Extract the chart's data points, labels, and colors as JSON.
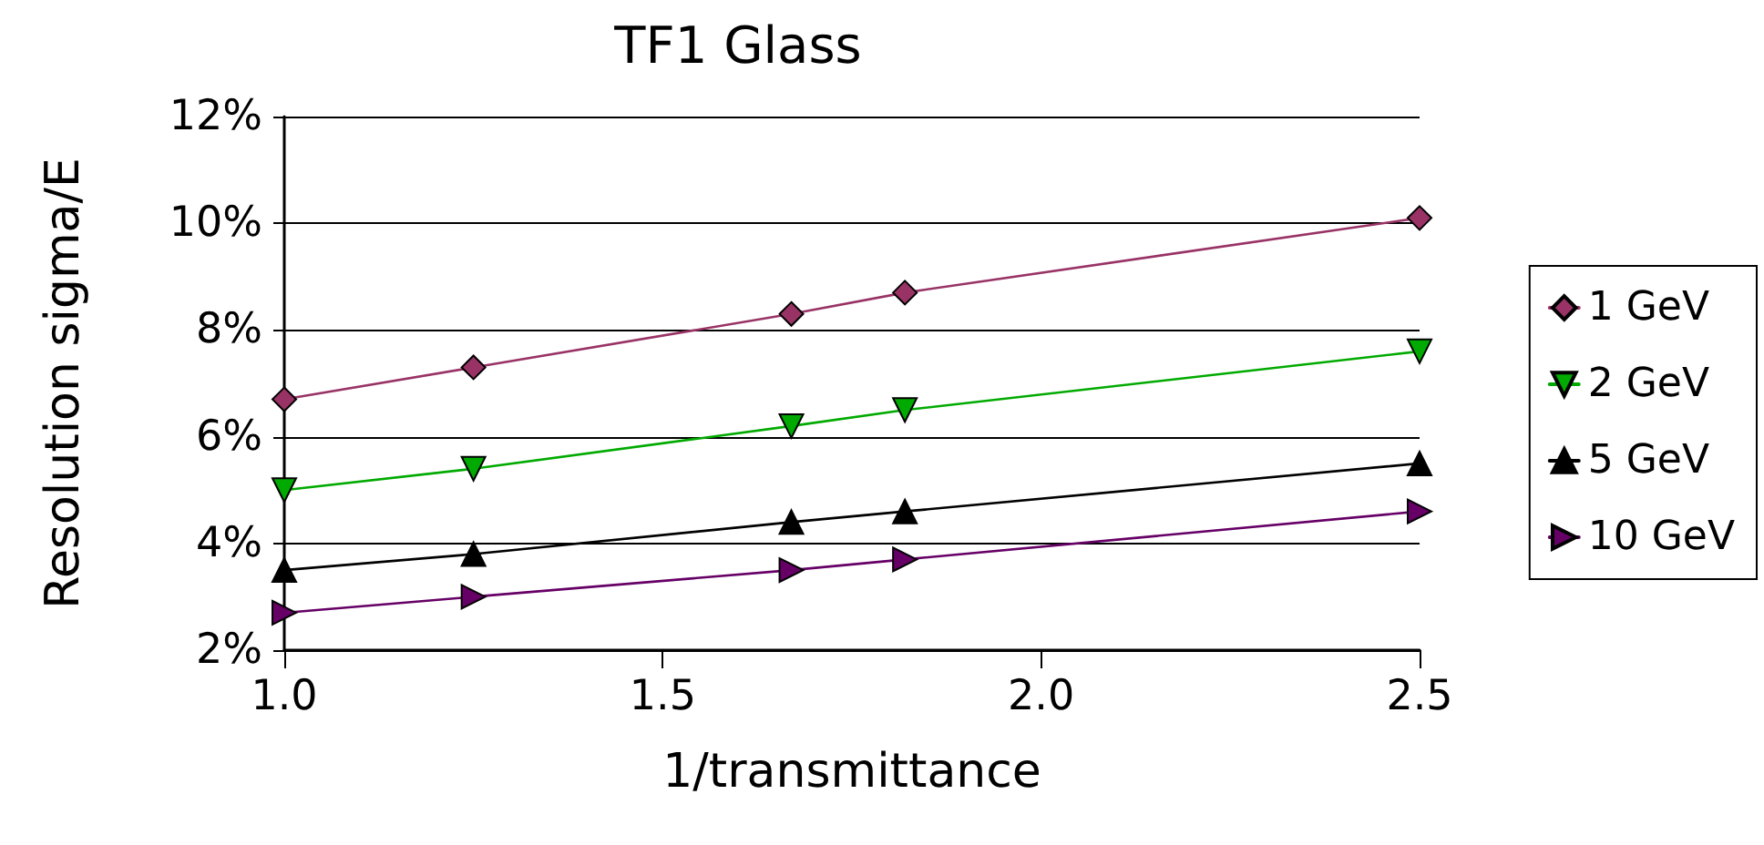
{
  "chart_data": {
    "type": "line",
    "title": "TF1 Glass",
    "xlabel": "1/transmittance",
    "ylabel": "Resolution sigma/E",
    "x": [
      1.0,
      1.25,
      1.67,
      1.82,
      2.5
    ],
    "series": [
      {
        "name": "1 GeV",
        "color": "#993366",
        "marker": "diamond",
        "values": [
          6.7,
          7.3,
          8.3,
          8.7,
          10.1
        ]
      },
      {
        "name": "2 GeV",
        "color": "#00aa00",
        "marker": "triangle-down",
        "values": [
          5.0,
          5.4,
          6.2,
          6.5,
          7.6
        ]
      },
      {
        "name": "5 GeV",
        "color": "#000000",
        "marker": "triangle",
        "values": [
          3.5,
          3.8,
          4.4,
          4.6,
          5.5
        ]
      },
      {
        "name": "10 GeV",
        "color": "#660066",
        "marker": "triangle-right",
        "values": [
          2.7,
          3.0,
          3.5,
          3.7,
          4.6
        ]
      }
    ],
    "xlim": [
      1.0,
      2.5
    ],
    "xticks": [
      {
        "value": 1,
        "label": "1.0"
      },
      {
        "value": 1.5,
        "label": "1.5"
      },
      {
        "value": 2,
        "label": "2.0"
      },
      {
        "value": 2.5,
        "label": "2.5"
      }
    ],
    "ylim": [
      2,
      12
    ],
    "yticks": [
      {
        "value": 2,
        "label": "2%"
      },
      {
        "value": 4,
        "label": "4%"
      },
      {
        "value": 6,
        "label": "6%"
      },
      {
        "value": 8,
        "label": "8%"
      },
      {
        "value": 10,
        "label": "10%"
      },
      {
        "value": 12,
        "label": "12%"
      }
    ],
    "grid": "y",
    "legend": "right",
    "line_style": "solid"
  }
}
